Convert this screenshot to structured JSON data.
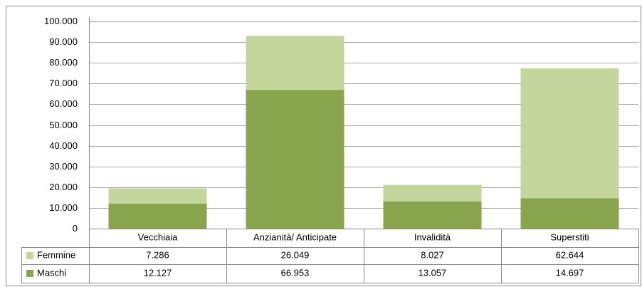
{
  "chart_data": {
    "type": "bar",
    "stacked": true,
    "categories": [
      "Vecchiaia",
      "Anzianità/ Anticipate",
      "Invalidità",
      "Superstiti"
    ],
    "series": [
      {
        "name": "Femmine",
        "color": "#c3d69b",
        "values": [
          7286,
          26049,
          8027,
          62644
        ],
        "value_labels": [
          "7.286",
          "26.049",
          "8.027",
          "62.644"
        ]
      },
      {
        "name": "Maschi",
        "color": "#88a44c",
        "values": [
          12127,
          66953,
          13057,
          14697
        ],
        "value_labels": [
          "12.127",
          "66.953",
          "13.057",
          "14.697"
        ]
      }
    ],
    "ylim": [
      0,
      100000
    ],
    "yticks": [
      0,
      {
        "value": 10000,
        "label": "10.000"
      },
      {
        "value": 20000,
        "label": "20.000"
      },
      {
        "value": 30000,
        "label": "30.000"
      },
      {
        "value": 40000,
        "label": "40.000"
      },
      {
        "value": 50000,
        "label": "50.000"
      },
      {
        "value": 60000,
        "label": "60.000"
      },
      {
        "value": 70000,
        "label": "70.000"
      },
      {
        "value": 80000,
        "label": "80.000"
      },
      {
        "value": 90000,
        "label": "90.000"
      },
      {
        "value": 100000,
        "label": "100.000"
      }
    ],
    "grid": true,
    "data_table": true
  }
}
